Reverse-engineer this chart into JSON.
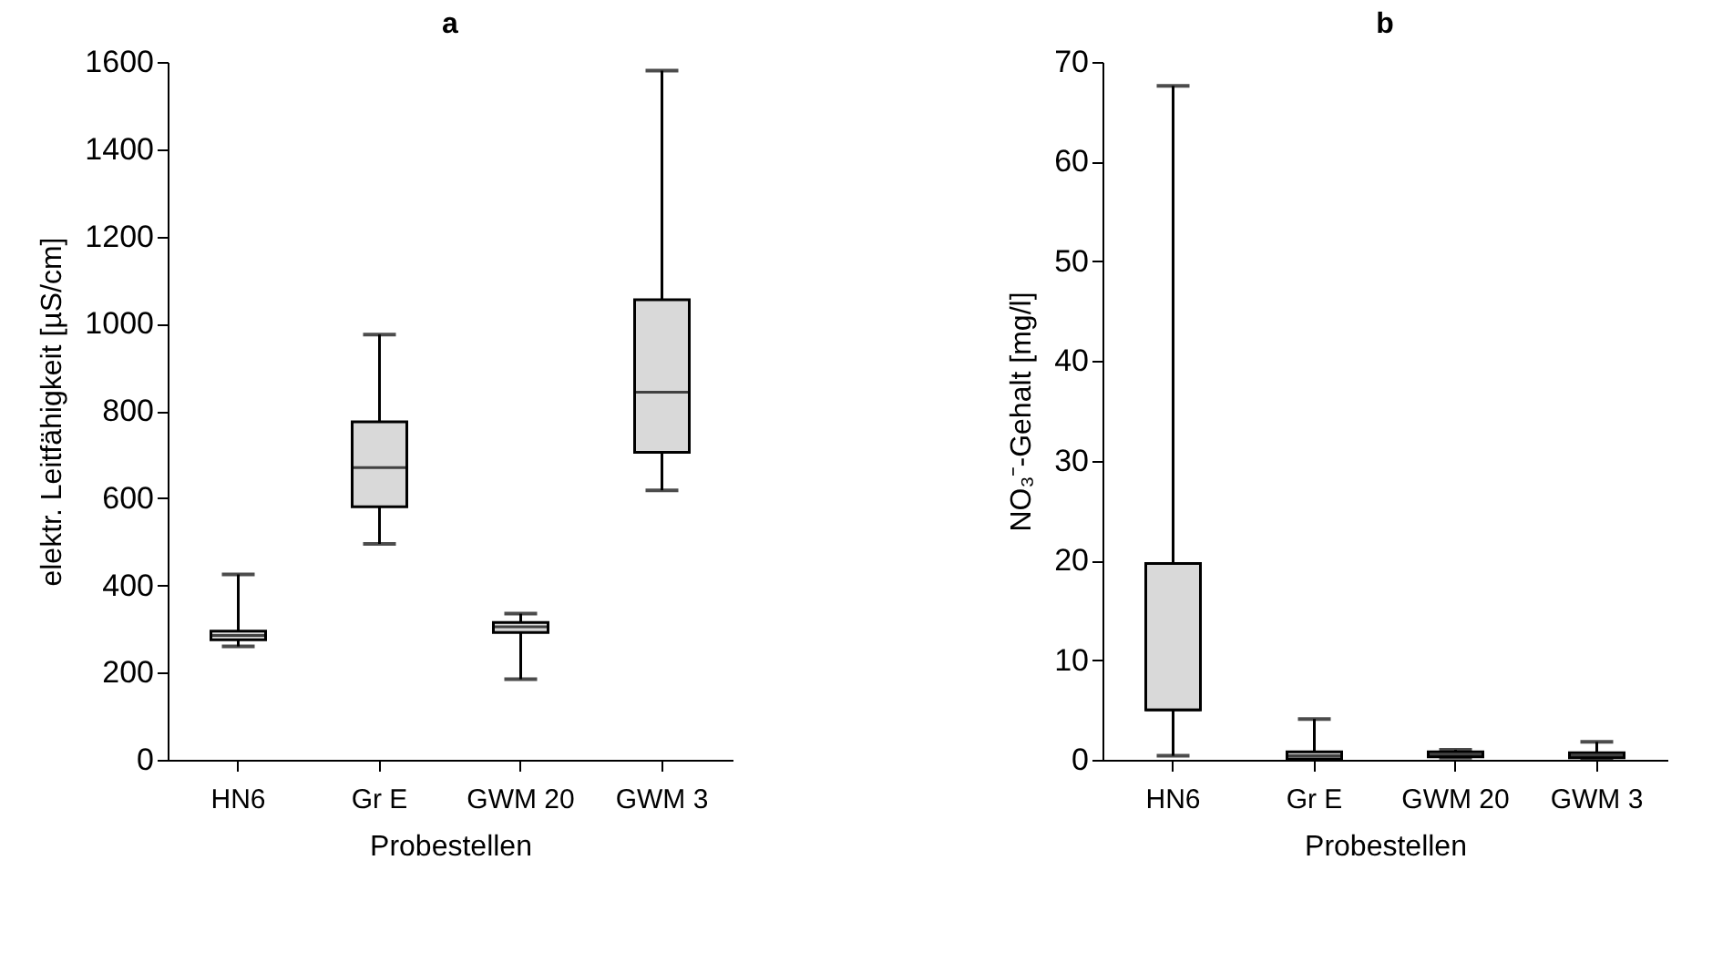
{
  "chart_data": [
    {
      "type": "box",
      "title": "a",
      "xlabel": "Probestellen",
      "ylabel": "elektr. Leitfähigkeit [µS/cm]",
      "categories": [
        "HN6",
        "Gr E",
        "GWM 20",
        "GWM 3"
      ],
      "color": "#d9d9d9",
      "ylim": [
        0,
        1600
      ],
      "yticks": [
        0,
        200,
        400,
        600,
        800,
        1000,
        1200,
        1400,
        1600
      ],
      "boxes": [
        {
          "low": 260,
          "q1": 275,
          "median": 285,
          "q3": 295,
          "high": 425
        },
        {
          "low": 495,
          "q1": 580,
          "median": 670,
          "q3": 775,
          "high": 975
        },
        {
          "low": 185,
          "q1": 292,
          "median": 305,
          "q3": 315,
          "high": 335
        },
        {
          "low": 618,
          "q1": 705,
          "median": 843,
          "q3": 1055,
          "high": 1580
        }
      ]
    },
    {
      "type": "box",
      "title": "b",
      "xlabel": "Probestellen",
      "ylabel": "NO₃⁻-Gehalt [mg/l]",
      "categories": [
        "HN6",
        "Gr E",
        "GWM 20",
        "GWM 3"
      ],
      "color": "#d9d9d9",
      "ylim": [
        0,
        70
      ],
      "yticks": [
        0,
        10,
        20,
        30,
        40,
        50,
        60,
        70
      ],
      "boxes": [
        {
          "low": 0.4,
          "q1": 5,
          "median": 5,
          "q3": 19.7,
          "high": 67.6
        },
        {
          "low": 0,
          "q1": 0.1,
          "median": 0.4,
          "q3": 0.8,
          "high": 4.1
        },
        {
          "low": 0.2,
          "q1": 0.3,
          "median": 0.5,
          "q3": 0.8,
          "high": 1
        },
        {
          "low": 0.1,
          "q1": 0.2,
          "median": 0.4,
          "q3": 0.7,
          "high": 1.8
        }
      ]
    }
  ]
}
